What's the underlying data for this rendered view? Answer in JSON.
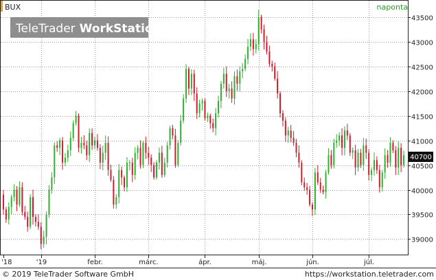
{
  "header": {
    "symbol": "BUX",
    "interval": "naponta",
    "watermark_left": "TeleTrader",
    "watermark_right": "WorkStation"
  },
  "footer": {
    "copyright": "© 2019 TeleTrader Software GmbH",
    "url": "https://workstation.teletrader.com"
  },
  "colors": {
    "up": "#2db02d",
    "down": "#d11a2a",
    "accent": "#f4a20c",
    "interval_text": "#2a9a2a",
    "grid": "#9a9a9a",
    "watermark_bg": "#8e8e8e"
  },
  "chart_data": {
    "type": "candlestick",
    "title": "BUX",
    "interval": "naponta",
    "last_price_label": "40700",
    "last_price": 40700,
    "ylim": [
      38700,
      43650
    ],
    "y_ticks": [
      39000,
      39500,
      40000,
      40500,
      41000,
      41500,
      42000,
      42500,
      43000,
      43500
    ],
    "y_tick_labels": [
      "39000",
      "39500",
      "40000",
      "40500",
      "41000",
      "41500",
      "42000",
      "42500",
      "43000",
      "43500"
    ],
    "x_labels": [
      {
        "label": "'18",
        "index": 0
      },
      {
        "label": "'19",
        "index": 14
      },
      {
        "label": "febr.",
        "index": 34
      },
      {
        "label": "márc.",
        "index": 54
      },
      {
        "label": "ápr.",
        "index": 75
      },
      {
        "label": "máj.",
        "index": 95
      },
      {
        "label": "jún.",
        "index": 115
      },
      {
        "label": "júl.",
        "index": 136
      }
    ],
    "grid": true,
    "close": [
      39600,
      39400,
      39650,
      39850,
      40000,
      39700,
      40050,
      39550,
      39450,
      39250,
      39850,
      39450,
      39350,
      39250,
      38900,
      39050,
      39500,
      40000,
      40250,
      40900,
      40850,
      41000,
      40550,
      40650,
      40800,
      41050,
      41350,
      41500,
      40850,
      40950,
      40900,
      40700,
      41150,
      40900,
      41000,
      40850,
      40550,
      40750,
      40950,
      40400,
      40200,
      39700,
      39850,
      40400,
      40250,
      40050,
      40550,
      40550,
      40300,
      40750,
      40850,
      40500,
      40950,
      40750,
      40650,
      40500,
      40250,
      40550,
      40750,
      40300,
      40550,
      40900,
      41250,
      41100,
      40500,
      40950,
      41400,
      41850,
      42450,
      42050,
      42350,
      41950,
      41550,
      41750,
      41800,
      41450,
      41500,
      41350,
      41250,
      41550,
      41800,
      42150,
      42350,
      42000,
      42050,
      41850,
      42300,
      42150,
      42400,
      42450,
      42650,
      42900,
      43050,
      42850,
      42950,
      43500,
      43250,
      43000,
      42800,
      42550,
      42500,
      42250,
      41950,
      41550,
      41400,
      41100,
      41200,
      41050,
      40950,
      40750,
      40550,
      40150,
      40050,
      40000,
      39700,
      39600,
      40350,
      40150,
      40000,
      39950,
      40350,
      40700,
      40500,
      40950,
      41000,
      41100,
      40850,
      41200,
      41100,
      40750,
      40800,
      40450,
      40750,
      40500,
      40900,
      40750,
      40300,
      40400,
      40600,
      40400,
      40050,
      40350,
      40700,
      40550,
      40950,
      40800,
      40450,
      40850,
      40500,
      40700
    ]
  }
}
